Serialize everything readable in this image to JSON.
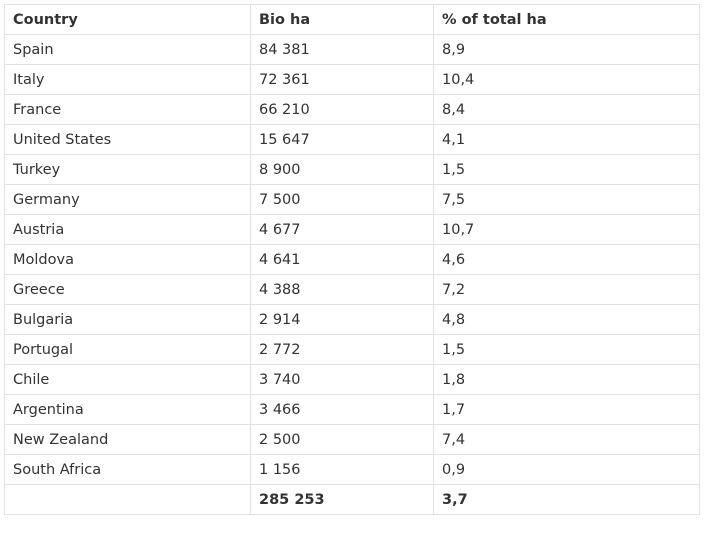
{
  "table": {
    "headers": [
      "Country",
      "Bio ha",
      "% of total ha"
    ],
    "rows": [
      [
        "Spain",
        "84 381",
        "8,9"
      ],
      [
        "Italy",
        "72 361",
        "10,4"
      ],
      [
        "France",
        "66 210",
        "8,4"
      ],
      [
        "United States",
        "15 647",
        "4,1"
      ],
      [
        "Turkey",
        "8 900",
        "1,5"
      ],
      [
        "Germany",
        "7 500",
        "7,5"
      ],
      [
        "Austria",
        "4 677",
        "10,7"
      ],
      [
        "Moldova",
        "4 641",
        "4,6"
      ],
      [
        "Greece",
        "4 388",
        "7,2"
      ],
      [
        "Bulgaria",
        "2 914",
        "4,8"
      ],
      [
        "Portugal",
        "2 772",
        "1,5"
      ],
      [
        "Chile",
        "3 740",
        "1,8"
      ],
      [
        "Argentina",
        "3 466",
        "1,7"
      ],
      [
        "New Zealand",
        "2 500",
        "7,4"
      ],
      [
        "South Africa",
        "1 156",
        "0,9"
      ]
    ],
    "total": [
      "",
      "285 253",
      "3,7"
    ]
  }
}
